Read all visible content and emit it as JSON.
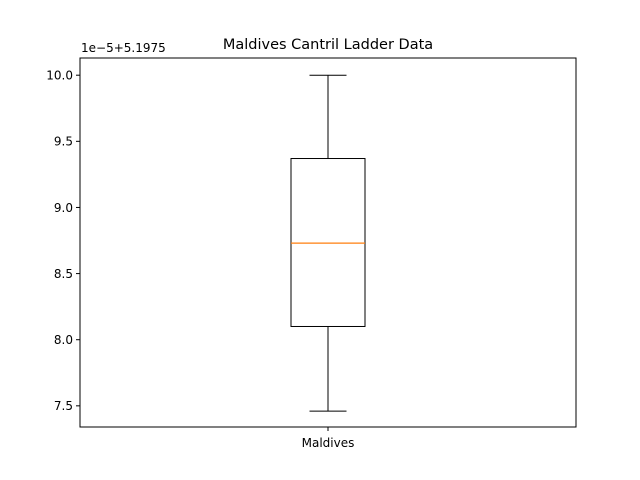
{
  "chart_data": {
    "type": "box",
    "title": "Maldives Cantril Ladder Data",
    "xlabel": "",
    "ylabel": "",
    "y_offset_label": "1e−5+5.1975",
    "categories": [
      "Maldives"
    ],
    "ylim": [
      7.34,
      10.13
    ],
    "yticks": [
      7.5,
      8.0,
      8.5,
      9.0,
      9.5,
      10.0
    ],
    "ytick_labels": [
      "7.5",
      "8.0",
      "8.5",
      "9.0",
      "9.5",
      "10.0"
    ],
    "boxes": [
      {
        "category": "Maldives",
        "whisker_low": 7.46,
        "q1": 8.1,
        "median": 8.73,
        "q3": 9.37,
        "whisker_high": 10.0
      }
    ],
    "grid": false,
    "colors": {
      "box": "#000000",
      "median": "#ff7f0e",
      "axes": "#000000"
    }
  }
}
